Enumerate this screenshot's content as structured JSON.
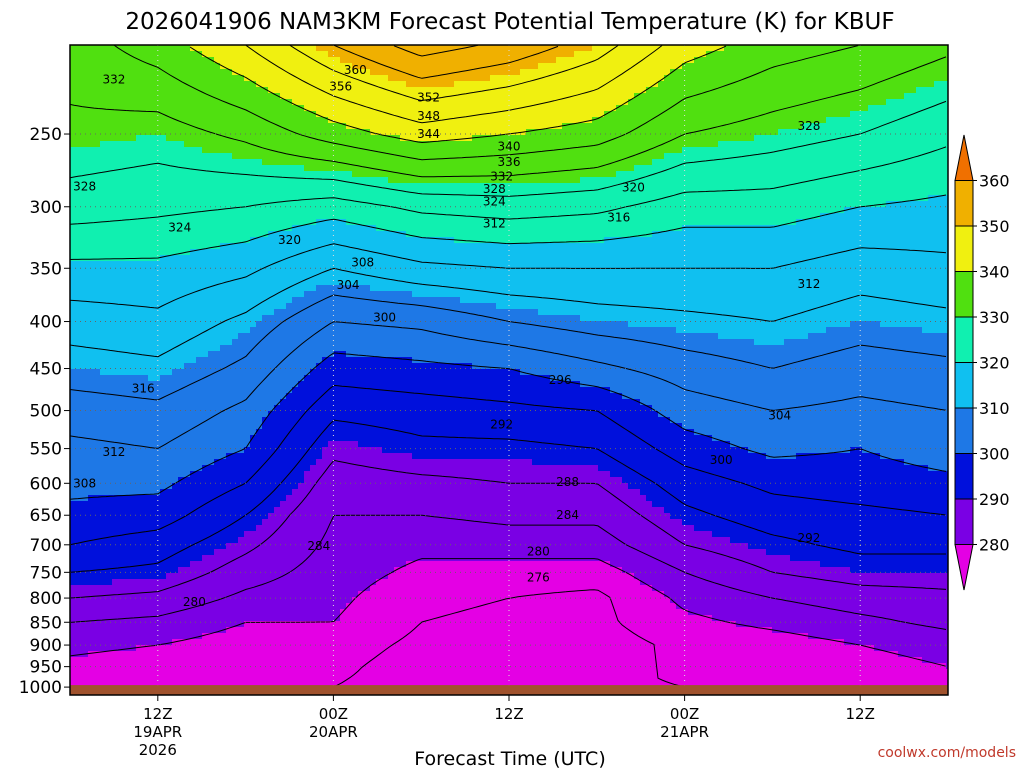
{
  "chart_data": {
    "type": "heatmap",
    "title": "2026041906 NAM3KM Forecast Potential Temperature (K) for KBUF",
    "xlabel": "Forecast Time (UTC)",
    "ylabel": "",
    "credit": "coolwx.com/models",
    "x_unit": "forecast hour",
    "xlim": [
      0,
      60
    ],
    "x_ticks": [
      {
        "hour": 6,
        "lines": [
          "12Z",
          "19APR",
          "2026"
        ]
      },
      {
        "hour": 18,
        "lines": [
          "00Z",
          "20APR"
        ]
      },
      {
        "hour": 30,
        "lines": [
          "12Z"
        ]
      },
      {
        "hour": 42,
        "lines": [
          "00Z",
          "21APR"
        ]
      },
      {
        "hour": 54,
        "lines": [
          "12Z"
        ]
      }
    ],
    "y_unit": "hPa",
    "ylim": [
      1020,
      200
    ],
    "y_ticks": [
      250,
      300,
      350,
      400,
      450,
      500,
      550,
      600,
      650,
      700,
      750,
      800,
      850,
      900,
      950,
      1000
    ],
    "surface_pressure_hpa": 995,
    "colorbar": {
      "levels": [
        280,
        290,
        300,
        310,
        320,
        330,
        340,
        350,
        360
      ],
      "labels": [
        "280",
        "290",
        "300",
        "310",
        "320",
        "330",
        "340",
        "350",
        "360"
      ],
      "colors": [
        "#e400e4",
        "#7a00e4",
        "#0010dc",
        "#1e78e6",
        "#10c0f0",
        "#10f0b0",
        "#50e010",
        "#f0f010",
        "#f0b000",
        "#f07000"
      ]
    },
    "isentrope_profiles": {
      "hours": [
        0,
        6,
        12,
        18,
        24,
        30,
        36,
        42,
        48,
        54,
        60
      ],
      "levels_hpa": [
        200,
        250,
        300,
        350,
        400,
        450,
        500,
        550,
        600,
        650,
        700,
        750,
        800,
        850,
        900,
        950,
        1000
      ],
      "theta_k": [
        [
          334,
          331,
          326,
          319,
          314,
          310,
          306,
          303,
          301,
          299,
          296,
          292,
          288,
          284,
          281,
          279,
          277
        ],
        [
          338,
          330,
          325,
          319,
          315,
          311,
          307,
          304,
          301,
          298,
          294,
          291,
          287,
          283,
          280,
          278,
          276
        ],
        [
          344,
          333,
          324,
          317,
          311,
          307,
          303,
          300,
          296,
          292,
          289,
          286,
          283,
          280,
          278,
          277,
          276
        ],
        [
          352,
          338,
          322,
          312,
          304,
          298,
          293,
          289,
          286,
          284,
          283,
          282,
          281,
          280,
          278,
          277,
          276
        ],
        [
          358,
          342,
          325,
          315,
          305,
          299,
          294,
          291,
          287,
          284,
          281,
          279,
          277,
          276,
          275,
          274,
          274
        ],
        [
          355,
          340,
          326,
          316,
          308,
          300,
          295,
          291,
          288,
          285,
          282,
          278,
          276,
          275,
          274,
          274,
          274
        ],
        [
          350,
          338,
          325,
          316,
          310,
          303,
          296,
          292,
          288,
          285,
          282,
          278,
          275,
          275,
          274,
          275,
          275
        ],
        [
          342,
          332,
          322,
          316,
          311,
          306,
          302,
          298,
          294,
          291,
          288,
          284,
          281,
          279,
          277,
          277,
          276
        ],
        [
          338,
          330,
          322,
          316,
          312,
          308,
          304,
          301,
          297,
          294,
          291,
          288,
          284,
          281,
          278,
          278,
          277
        ],
        [
          336,
          328,
          320,
          314,
          310,
          306,
          303,
          300,
          298,
          295,
          293,
          290,
          286,
          283,
          280,
          278,
          278
        ],
        [
          333,
          325,
          319,
          315,
          311,
          307,
          304,
          302,
          299,
          296,
          293,
          290,
          287,
          285,
          282,
          280,
          279
        ]
      ]
    },
    "contour_labels": [
      {
        "value": "360",
        "hour": 19.5,
        "p": 213
      },
      {
        "value": "356",
        "hour": 18.5,
        "p": 222
      },
      {
        "value": "352",
        "hour": 24.5,
        "p": 228
      },
      {
        "value": "348",
        "hour": 24.5,
        "p": 239
      },
      {
        "value": "344",
        "hour": 24.5,
        "p": 250
      },
      {
        "value": "340",
        "hour": 30,
        "p": 258
      },
      {
        "value": "336",
        "hour": 30,
        "p": 268
      },
      {
        "value": "332",
        "hour": 29.5,
        "p": 278
      },
      {
        "value": "328",
        "hour": 29,
        "p": 287
      },
      {
        "value": "324",
        "hour": 29,
        "p": 296
      },
      {
        "value": "320",
        "hour": 38.5,
        "p": 286
      },
      {
        "value": "316",
        "hour": 37.5,
        "p": 308
      },
      {
        "value": "312",
        "hour": 29,
        "p": 313
      },
      {
        "value": "308",
        "hour": 20,
        "p": 345
      },
      {
        "value": "304",
        "hour": 19,
        "p": 365
      },
      {
        "value": "300",
        "hour": 21.5,
        "p": 396
      },
      {
        "value": "296",
        "hour": 33.5,
        "p": 463
      },
      {
        "value": "292",
        "hour": 29.5,
        "p": 518
      },
      {
        "value": "288",
        "hour": 34,
        "p": 598
      },
      {
        "value": "284",
        "hour": 34,
        "p": 650
      },
      {
        "value": "280",
        "hour": 32,
        "p": 712
      },
      {
        "value": "276",
        "hour": 32,
        "p": 760
      },
      {
        "value": "284",
        "hour": 17,
        "p": 702
      },
      {
        "value": "280",
        "hour": 8.5,
        "p": 808
      },
      {
        "value": "332",
        "hour": 3,
        "p": 218
      },
      {
        "value": "328",
        "hour": 1,
        "p": 285
      },
      {
        "value": "324",
        "hour": 7.5,
        "p": 316
      },
      {
        "value": "320",
        "hour": 15,
        "p": 326
      },
      {
        "value": "316",
        "hour": 5,
        "p": 473
      },
      {
        "value": "312",
        "hour": 3,
        "p": 555
      },
      {
        "value": "308",
        "hour": 1,
        "p": 600
      },
      {
        "value": "328",
        "hour": 50.5,
        "p": 245
      },
      {
        "value": "312",
        "hour": 50.5,
        "p": 364
      },
      {
        "value": "304",
        "hour": 48.5,
        "p": 506
      },
      {
        "value": "300",
        "hour": 44.5,
        "p": 566
      },
      {
        "value": "292",
        "hour": 50.5,
        "p": 688
      }
    ]
  }
}
